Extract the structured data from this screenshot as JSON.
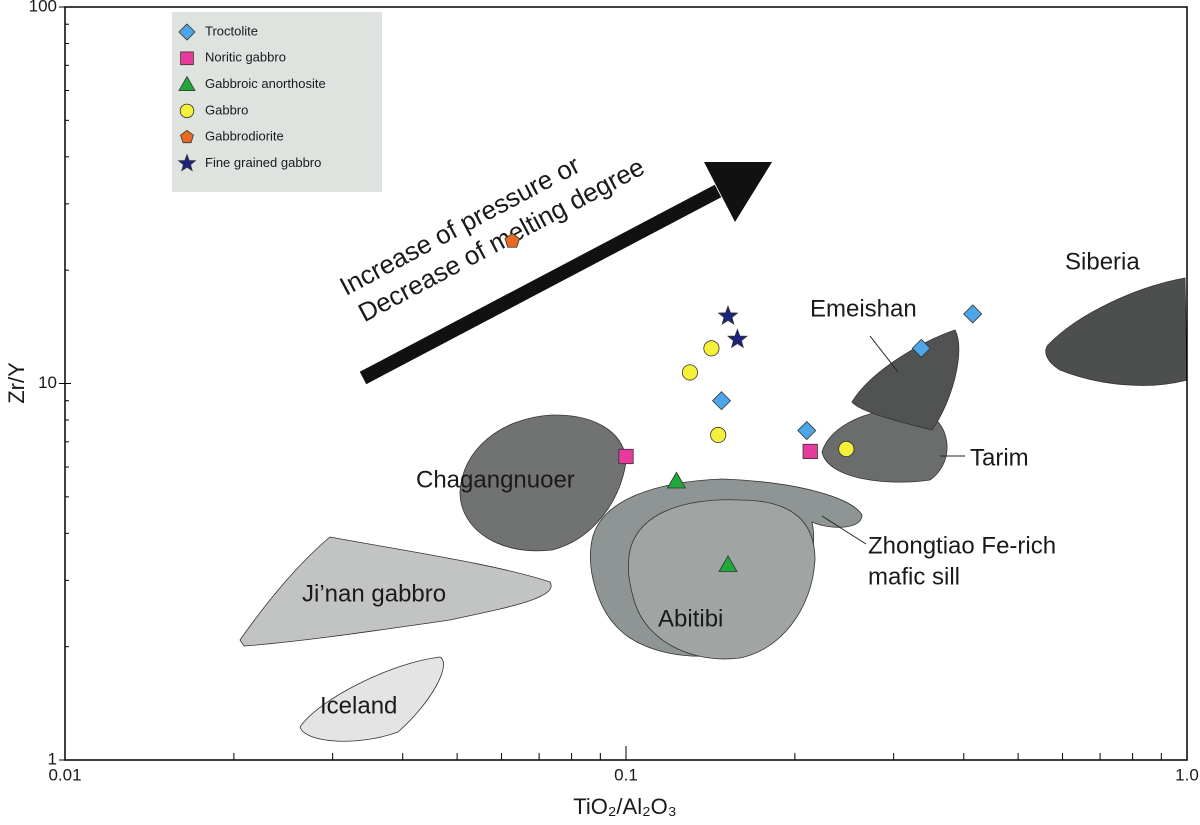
{
  "chart_data": {
    "type": "scatter",
    "x_label": "TiO₂/Al₂O₃",
    "y_label": "Zr/Y",
    "xscale": "log",
    "yscale": "log",
    "xlim": [
      0.01,
      1
    ],
    "ylim": [
      1,
      100
    ],
    "xticks": [
      0.01,
      0.1,
      {
        "value": 1,
        "label": "1.0"
      }
    ],
    "yticks": [
      1,
      10,
      100
    ],
    "xminorticks": [
      0.02,
      0.03,
      0.04,
      0.05,
      0.06,
      0.07,
      0.08,
      0.09,
      0.2,
      0.3,
      0.4,
      0.5,
      0.6,
      0.7,
      0.8,
      0.9
    ],
    "yminorticks": [
      2,
      3,
      4,
      5,
      6,
      7,
      8,
      9,
      20,
      30,
      40,
      50,
      60,
      70,
      80,
      90
    ],
    "legend": "upper left",
    "series": [
      {
        "name": "Troctolite",
        "color": "#4da6e8",
        "marker": "diamond",
        "x": [
          0.415,
          0.336,
          0.148,
          0.21
        ],
        "values": [
          15.3,
          12.4,
          9.0,
          7.5
        ]
      },
      {
        "name": "Noritic gabbro",
        "color": "#e8399c",
        "marker": "square",
        "x": [
          0.1,
          0.213
        ],
        "values": [
          6.4,
          6.6
        ]
      },
      {
        "name": "Gabbroic anorthosite",
        "color": "#20a838",
        "marker": "triangle",
        "x": [
          0.123,
          0.152
        ],
        "values": [
          5.5,
          3.3
        ]
      },
      {
        "name": "Gabbro",
        "color": "#f5f03a",
        "marker": "circle",
        "x": [
          0.142,
          0.13,
          0.146,
          0.247
        ],
        "values": [
          12.4,
          10.7,
          7.3,
          6.7
        ]
      },
      {
        "name": "Gabbrodiorite",
        "color": "#e86a20",
        "marker": "pentagon",
        "x": [
          0.0627
        ],
        "values": [
          23.9
        ]
      },
      {
        "name": "Fine grained gabbro",
        "color": "#1a237e",
        "marker": "star",
        "x": [
          0.152,
          0.158
        ],
        "values": [
          15.1,
          13.1
        ]
      }
    ],
    "annotations": {
      "arrow_line1": "Increase of pressure or",
      "arrow_line2": "Decrease of melting degree",
      "siberia": "Siberia",
      "emeishan": "Emeishan",
      "tarim": "Tarim",
      "chagangnuoer": "Chagangnuoer",
      "zhongtiao1": "Zhongtiao Fe-rich",
      "zhongtiao2": "mafic sill",
      "jinan": "Ji’nan gabbro",
      "abitibi": "Abitibi",
      "iceland": "Iceland"
    }
  }
}
